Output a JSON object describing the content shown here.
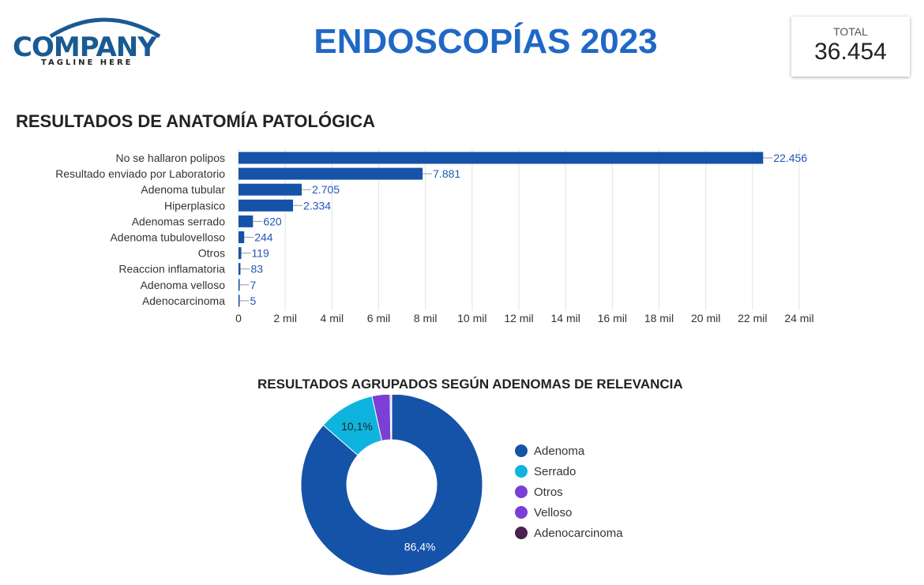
{
  "header": {
    "logo_text": "COMPANY",
    "logo_tagline": "TAGLINE HERE",
    "title": "ENDOSCOPÍAS 2023"
  },
  "kpi": {
    "label": "TOTAL",
    "value": "36.454"
  },
  "bar_section": {
    "title": "RESULTADOS DE ANATOMÍA PATOLÓGICA"
  },
  "donut_section": {
    "title": "RESULTADOS AGRUPADOS SEGÚN ADENOMAS DE RELEVANCIA"
  },
  "colors": {
    "bar": "#1553a8",
    "data_label": "#1f57b5",
    "grid": "#e3e3e3",
    "logo_blue": "#1a5a93",
    "title_blue": "#1f68c6"
  },
  "chart_data": [
    {
      "type": "bar",
      "orientation": "horizontal",
      "categories": [
        "No se hallaron polipos",
        "Resultado enviado por Laboratorio",
        "Adenoma tubular",
        "Hiperplasico",
        "Adenomas serrado",
        "Adenoma tubulovelloso",
        "Otros",
        "Reaccion inflamatoria",
        "Adenoma velloso",
        "Adenocarcinoma"
      ],
      "values": [
        22456,
        7881,
        2705,
        2334,
        620,
        244,
        119,
        83,
        7,
        5
      ],
      "value_labels": [
        "22.456",
        "7.881",
        "2.705",
        "2.334",
        "620",
        "244",
        "119",
        "83",
        "7",
        "5"
      ],
      "xlim": [
        0,
        24000
      ],
      "xticks": [
        0,
        2000,
        4000,
        6000,
        8000,
        10000,
        12000,
        14000,
        16000,
        18000,
        20000,
        22000,
        24000
      ],
      "xtick_labels": [
        "0",
        "2 mil",
        "4 mil",
        "6 mil",
        "8 mil",
        "10 mil",
        "12 mil",
        "14 mil",
        "16 mil",
        "18 mil",
        "20 mil",
        "22 mil",
        "24 mil"
      ],
      "grid": true
    },
    {
      "type": "pie",
      "variant": "donut",
      "title": "RESULTADOS AGRUPADOS SEGÚN ADENOMAS DE RELEVANCIA",
      "labels": [
        "Adenoma",
        "Serrado",
        "Otros",
        "Velloso",
        "Adenocarcinoma"
      ],
      "values": [
        86.4,
        10.1,
        3.2,
        0.2,
        0.1
      ],
      "value_labels": [
        "86,4%",
        "10,1%",
        "",
        "",
        ""
      ],
      "colors": [
        "#1553a8",
        "#0fb4de",
        "#7b3fd6",
        "#7b3fd6",
        "#4a2150"
      ],
      "legend": "right"
    }
  ]
}
